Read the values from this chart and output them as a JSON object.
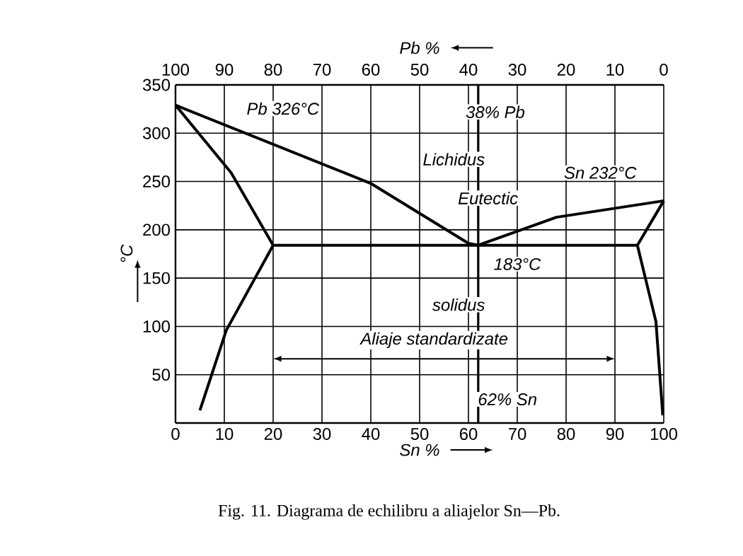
{
  "chart_data": {
    "type": "line",
    "xlabel": "Sn %",
    "x2label": "Pb %",
    "ylabel": "°C",
    "xlim": [
      0,
      100
    ],
    "xticks": [
      0,
      10,
      20,
      30,
      40,
      50,
      60,
      70,
      80,
      90,
      100
    ],
    "x2lim": [
      100,
      0
    ],
    "x2ticks": [
      100,
      90,
      80,
      70,
      60,
      50,
      40,
      30,
      20,
      10,
      0
    ],
    "ylim": [
      0,
      350
    ],
    "yticks": [
      50,
      100,
      150,
      200,
      250,
      300,
      350
    ],
    "grid": true,
    "marker": "none",
    "line_style": "solid",
    "series": [
      {
        "color": "#000000",
        "x": [
          0,
          40,
          60,
          62,
          78,
          100
        ],
        "values": [
          329,
          248,
          186,
          184,
          213,
          230
        ]
      },
      {
        "color": "#000000",
        "x": [
          0,
          11.4,
          20,
          10.4,
          5
        ],
        "values": [
          329,
          259,
          184,
          96,
          13
        ]
      },
      {
        "color": "#000000",
        "x": [
          100,
          94.6,
          98.4,
          99.8
        ],
        "values": [
          230,
          184,
          105,
          8
        ]
      },
      {
        "color": "#000000",
        "x": [
          20,
          94.6
        ],
        "values": [
          184,
          184
        ]
      }
    ],
    "ref_lines": [
      {
        "axis": "x",
        "value": 62,
        "color": "#000000"
      }
    ],
    "annotations": [
      "Pb 326°C",
      "38% Pb",
      "Lichidus",
      "Sn 232°C",
      "Eutectic",
      "183°C",
      "solidus",
      "62% Sn",
      "Aliaje standardizate"
    ],
    "title": "Fig. 11. Diagrama de echilibru a aliajelor Sn—Pb."
  }
}
